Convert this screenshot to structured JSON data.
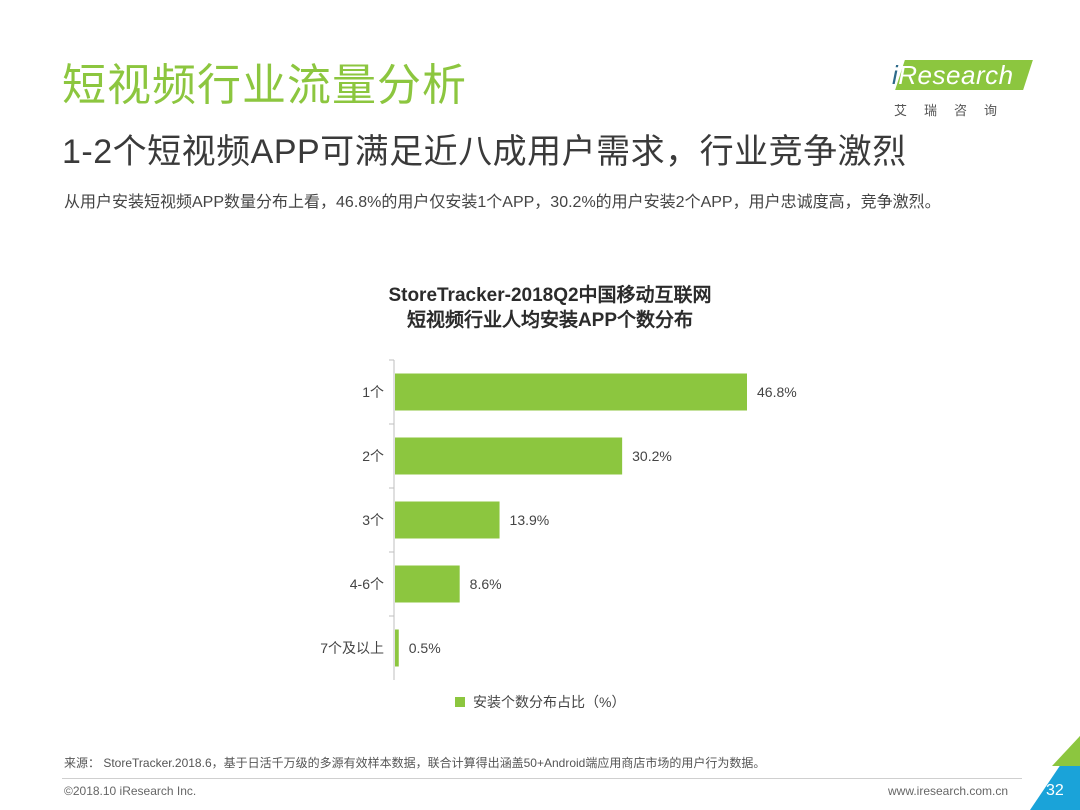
{
  "header": {
    "title": "短视频行业流量分析",
    "subtitle": "1-2个短视频APP可满足近八成用户需求，行业竞争激烈",
    "summary": "从用户安装短视频APP数量分布上看，46.8%的用户仅安装1个APP，30.2%的用户安装2个APP，用户忠诚度高，竞争激烈。"
  },
  "logo": {
    "brand_i": "i",
    "brand_rest": "Research",
    "sub": "艾瑞咨询"
  },
  "colors": {
    "accent": "#8cc63f",
    "corner_blue": "#1aa3d9",
    "corner_green": "#8cc63f"
  },
  "chart_data": {
    "type": "bar",
    "orientation": "horizontal",
    "title_lines": [
      "StoreTracker-2018Q2中国移动互联网",
      "短视频行业人均安装APP个数分布"
    ],
    "categories": [
      "1个",
      "2个",
      "3个",
      "4-6个",
      "7个及以上"
    ],
    "values": [
      46.8,
      30.2,
      13.9,
      8.6,
      0.5
    ],
    "value_labels": [
      "46.8%",
      "30.2%",
      "13.9%",
      "8.6%",
      "0.5%"
    ],
    "series": [
      {
        "name": "安装个数分布占比（%）",
        "values": [
          46.8,
          30.2,
          13.9,
          8.6,
          0.5
        ]
      }
    ],
    "legend_position": "bottom",
    "grid": false
  },
  "footer": {
    "source": "来源： StoreTracker.2018.6，基于日活千万级的多源有效样本数据，联合计算得出涵盖50+Android端应用商店市场的用户行为数据。",
    "copyright": "©2018.10 iResearch Inc.",
    "website": "www.iresearch.com.cn",
    "page_number": "32"
  }
}
